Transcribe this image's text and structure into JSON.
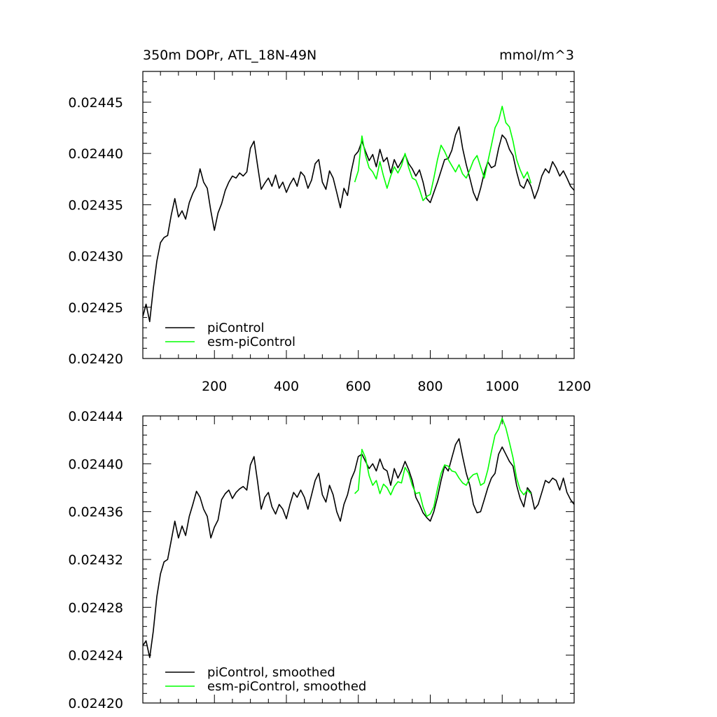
{
  "header": {
    "title": "350m DOPr, ATL_18N-49N",
    "units": "mmol/m^3"
  },
  "chart_data": [
    {
      "type": "line",
      "title": "350m DOPr, ATL_18N-49N",
      "units": "mmol/m^3",
      "xlim": [
        1,
        1200
      ],
      "ylim": [
        0.0242,
        0.02448
      ],
      "x_ticks": [
        200,
        400,
        600,
        800,
        1000,
        1200
      ],
      "x_tick_labels": [
        "200",
        "400",
        "600",
        "800",
        "1000",
        "1200"
      ],
      "y_ticks": [
        0.0242,
        0.02425,
        0.0243,
        0.02435,
        0.0244,
        0.02445
      ],
      "y_tick_labels": [
        "0.02420",
        "0.02425",
        "0.02430",
        "0.02435",
        "0.02440",
        "0.02445"
      ],
      "legend_position": "bottom-left",
      "grid": false,
      "series": [
        {
          "name": "piControl",
          "color": "#000000",
          "x": [
            1,
            10,
            20,
            30,
            40,
            50,
            60,
            70,
            80,
            90,
            100,
            110,
            120,
            130,
            140,
            150,
            160,
            170,
            180,
            190,
            200,
            210,
            220,
            230,
            240,
            250,
            260,
            270,
            280,
            290,
            300,
            310,
            320,
            330,
            340,
            350,
            360,
            370,
            380,
            390,
            400,
            410,
            420,
            430,
            440,
            450,
            460,
            470,
            480,
            490,
            500,
            510,
            520,
            530,
            540,
            550,
            560,
            570,
            580,
            590,
            600,
            610,
            620,
            630,
            640,
            650,
            660,
            670,
            680,
            690,
            700,
            710,
            720,
            730,
            740,
            750,
            760,
            770,
            780,
            790,
            800,
            810,
            820,
            830,
            840,
            850,
            860,
            870,
            880,
            890,
            900,
            910,
            920,
            930,
            940,
            950,
            960,
            970,
            980,
            990,
            1000,
            1010,
            1020,
            1030,
            1040,
            1050,
            1060,
            1070,
            1080,
            1090,
            1100,
            1110,
            1120,
            1130,
            1140,
            1150,
            1160,
            1170,
            1180,
            1190,
            1200
          ],
          "y": [
            0.024241,
            0.024253,
            0.024236,
            0.024268,
            0.024295,
            0.024313,
            0.024318,
            0.02432,
            0.02434,
            0.024356,
            0.024338,
            0.024344,
            0.024336,
            0.024352,
            0.024361,
            0.024368,
            0.024385,
            0.024372,
            0.024366,
            0.024344,
            0.024325,
            0.024342,
            0.024351,
            0.024364,
            0.024372,
            0.024378,
            0.024376,
            0.024381,
            0.024378,
            0.024382,
            0.024405,
            0.024412,
            0.024388,
            0.024365,
            0.024371,
            0.024376,
            0.024368,
            0.024379,
            0.024366,
            0.024372,
            0.024362,
            0.02437,
            0.024376,
            0.024368,
            0.024382,
            0.024378,
            0.024366,
            0.024374,
            0.02439,
            0.024394,
            0.024372,
            0.024365,
            0.024383,
            0.024376,
            0.024362,
            0.024347,
            0.024366,
            0.024359,
            0.024382,
            0.024398,
            0.024402,
            0.024412,
            0.024402,
            0.024393,
            0.024399,
            0.024387,
            0.024404,
            0.024392,
            0.024396,
            0.024381,
            0.024394,
            0.024386,
            0.024392,
            0.024399,
            0.02439,
            0.024385,
            0.024378,
            0.024384,
            0.024372,
            0.024356,
            0.024352,
            0.024362,
            0.024372,
            0.024383,
            0.024394,
            0.024395,
            0.024403,
            0.024418,
            0.024426,
            0.024405,
            0.024389,
            0.024376,
            0.024362,
            0.024354,
            0.024366,
            0.024381,
            0.024392,
            0.024386,
            0.024388,
            0.024405,
            0.024418,
            0.024414,
            0.024404,
            0.024398,
            0.024382,
            0.024369,
            0.024366,
            0.024375,
            0.024368,
            0.024356,
            0.024365,
            0.024378,
            0.024385,
            0.024381,
            0.024392,
            0.024386,
            0.024378,
            0.024383,
            0.024376,
            0.024368,
            0.024364
          ]
        },
        {
          "name": "esm-piControl",
          "color": "#00ff00",
          "x": [
            590,
            600,
            610,
            620,
            630,
            640,
            650,
            660,
            670,
            680,
            690,
            700,
            710,
            720,
            730,
            740,
            750,
            760,
            770,
            780,
            790,
            800,
            810,
            820,
            830,
            840,
            850,
            860,
            870,
            880,
            890,
            900,
            910,
            920,
            930,
            940,
            950,
            960,
            970,
            980,
            990,
            1000,
            1010,
            1020,
            1030,
            1040,
            1050,
            1060,
            1070,
            1080
          ],
          "y": [
            0.024372,
            0.024383,
            0.024417,
            0.024398,
            0.024386,
            0.024382,
            0.024375,
            0.024392,
            0.024378,
            0.024366,
            0.024378,
            0.024387,
            0.024381,
            0.024388,
            0.0244,
            0.024386,
            0.024376,
            0.024374,
            0.024365,
            0.024354,
            0.024358,
            0.02436,
            0.024376,
            0.024394,
            0.024408,
            0.024402,
            0.024394,
            0.024388,
            0.024382,
            0.024389,
            0.02438,
            0.024376,
            0.024384,
            0.024393,
            0.024398,
            0.024387,
            0.024376,
            0.024392,
            0.024408,
            0.024425,
            0.024432,
            0.024446,
            0.02443,
            0.024426,
            0.024412,
            0.024394,
            0.024384,
            0.024376,
            0.024382,
            0.024371
          ]
        }
      ]
    },
    {
      "type": "line",
      "xlim": [
        1,
        1200
      ],
      "ylim": [
        0.0242,
        0.02444
      ],
      "x_ticks": [
        200,
        400,
        600,
        800,
        1000,
        1200
      ],
      "y_ticks": [
        0.0242,
        0.02424,
        0.02428,
        0.02432,
        0.02436,
        0.0244,
        0.02444
      ],
      "y_tick_labels": [
        "0.02420",
        "0.02424",
        "0.02428",
        "0.02432",
        "0.02436",
        "0.02440",
        "0.02444"
      ],
      "legend_position": "bottom-left",
      "grid": false,
      "series": [
        {
          "name": "piControl, smoothed",
          "color": "#000000",
          "x": [
            1,
            10,
            20,
            30,
            40,
            50,
            60,
            70,
            80,
            90,
            100,
            110,
            120,
            130,
            140,
            150,
            160,
            170,
            180,
            190,
            200,
            210,
            220,
            230,
            240,
            250,
            260,
            270,
            280,
            290,
            300,
            310,
            320,
            330,
            340,
            350,
            360,
            370,
            380,
            390,
            400,
            410,
            420,
            430,
            440,
            450,
            460,
            470,
            480,
            490,
            500,
            510,
            520,
            530,
            540,
            550,
            560,
            570,
            580,
            590,
            600,
            610,
            620,
            630,
            640,
            650,
            660,
            670,
            680,
            690,
            700,
            710,
            720,
            730,
            740,
            750,
            760,
            770,
            780,
            790,
            800,
            810,
            820,
            830,
            840,
            850,
            860,
            870,
            880,
            890,
            900,
            910,
            920,
            930,
            940,
            950,
            960,
            970,
            980,
            990,
            1000,
            1010,
            1020,
            1030,
            1040,
            1050,
            1060,
            1070,
            1080,
            1090,
            1100,
            1110,
            1120,
            1130,
            1140,
            1150,
            1160,
            1170,
            1180,
            1190,
            1200
          ],
          "y": [
            0.024248,
            0.024252,
            0.024238,
            0.02426,
            0.024289,
            0.024308,
            0.024318,
            0.02432,
            0.024336,
            0.024352,
            0.024338,
            0.024348,
            0.02434,
            0.024356,
            0.024366,
            0.024377,
            0.024372,
            0.024362,
            0.024356,
            0.024338,
            0.024347,
            0.024353,
            0.02437,
            0.024375,
            0.024378,
            0.024371,
            0.024376,
            0.024379,
            0.024381,
            0.024378,
            0.024399,
            0.024406,
            0.024385,
            0.024362,
            0.024372,
            0.024376,
            0.024364,
            0.024358,
            0.024366,
            0.024362,
            0.024354,
            0.024366,
            0.024376,
            0.024372,
            0.024378,
            0.024372,
            0.024362,
            0.024374,
            0.024386,
            0.024392,
            0.024374,
            0.024368,
            0.024382,
            0.024374,
            0.02436,
            0.024352,
            0.024366,
            0.024374,
            0.024387,
            0.024394,
            0.024406,
            0.024408,
            0.024402,
            0.024396,
            0.0244,
            0.024394,
            0.024404,
            0.024396,
            0.024394,
            0.024382,
            0.024396,
            0.024388,
            0.024394,
            0.024402,
            0.024395,
            0.024386,
            0.024372,
            0.024366,
            0.024359,
            0.024355,
            0.024352,
            0.02436,
            0.024372,
            0.024386,
            0.024398,
            0.024394,
            0.024405,
            0.024416,
            0.024421,
            0.024406,
            0.024392,
            0.024382,
            0.024366,
            0.024359,
            0.02436,
            0.02437,
            0.02438,
            0.024388,
            0.024392,
            0.024408,
            0.024414,
            0.024408,
            0.024402,
            0.024398,
            0.024382,
            0.024371,
            0.024364,
            0.02438,
            0.024376,
            0.024362,
            0.024366,
            0.024376,
            0.024386,
            0.024384,
            0.024388,
            0.024386,
            0.024378,
            0.024388,
            0.024376,
            0.02437,
            0.024366
          ]
        },
        {
          "name": "esm-piControl, smoothed",
          "color": "#00ff00",
          "x": [
            590,
            600,
            610,
            620,
            630,
            640,
            650,
            660,
            670,
            680,
            690,
            700,
            710,
            720,
            730,
            740,
            750,
            760,
            770,
            780,
            790,
            800,
            810,
            820,
            830,
            840,
            850,
            860,
            870,
            880,
            890,
            900,
            910,
            920,
            930,
            940,
            950,
            960,
            970,
            980,
            990,
            1000,
            1010,
            1020,
            1030,
            1040,
            1050,
            1060,
            1070,
            1080
          ],
          "y": [
            0.024375,
            0.024378,
            0.024412,
            0.024405,
            0.02439,
            0.024382,
            0.024386,
            0.024375,
            0.024383,
            0.02438,
            0.024374,
            0.024381,
            0.024385,
            0.024384,
            0.024397,
            0.024392,
            0.024382,
            0.024375,
            0.024376,
            0.024364,
            0.024356,
            0.024358,
            0.024364,
            0.024379,
            0.024392,
            0.024399,
            0.024398,
            0.024394,
            0.024393,
            0.024388,
            0.024384,
            0.024382,
            0.024388,
            0.024391,
            0.024392,
            0.024382,
            0.024384,
            0.024395,
            0.02441,
            0.024424,
            0.024429,
            0.024438,
            0.02443,
            0.024418,
            0.024405,
            0.024388,
            0.024378,
            0.024374,
            0.024378,
            0.024375
          ]
        }
      ]
    }
  ]
}
